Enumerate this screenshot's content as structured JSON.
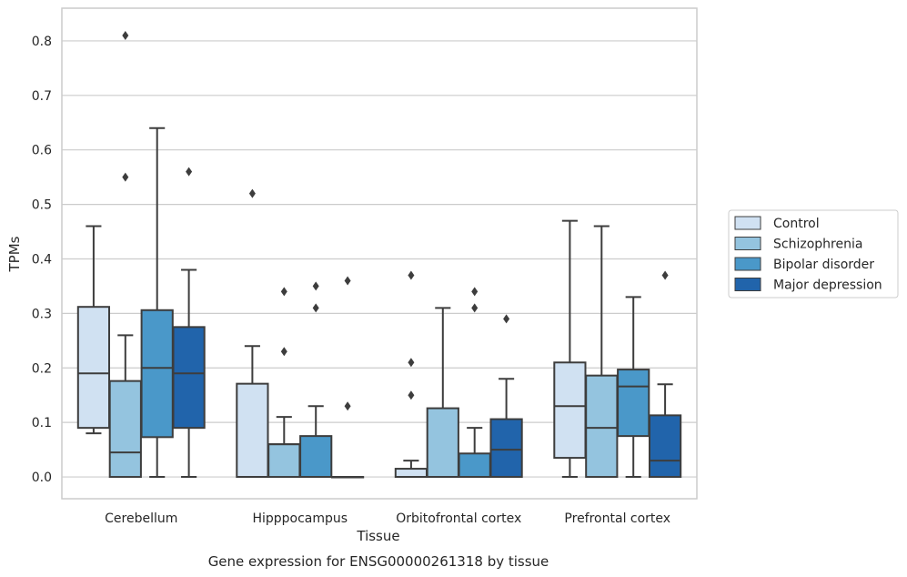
{
  "caption": "Gene expression for ENSG00000261318 by tissue",
  "chart_data": {
    "type": "box",
    "xlabel": "Tissue",
    "ylabel": "TPMs",
    "ylim": [
      -0.04,
      0.86
    ],
    "yticks": [
      0.0,
      0.1,
      0.2,
      0.3,
      0.4,
      0.5,
      0.6,
      0.7,
      0.8
    ],
    "ytick_labels": [
      "0.0",
      "0.1",
      "0.2",
      "0.3",
      "0.4",
      "0.5",
      "0.6",
      "0.7",
      "0.8"
    ],
    "grid": true,
    "legend_position": "right",
    "categories": [
      "Cerebellum",
      "Hipppocampus",
      "Orbitofrontal cortex",
      "Prefrontal cortex"
    ],
    "series": [
      {
        "name": "Control",
        "color": "#d0e1f2",
        "boxes": [
          {
            "min": 0.08,
            "q1": 0.09,
            "median": 0.19,
            "q3": 0.312,
            "max": 0.46,
            "outliers": []
          },
          {
            "min": 0.0,
            "q1": 0.0,
            "median": 0.0,
            "q3": 0.171,
            "max": 0.24,
            "outliers": [
              0.52
            ]
          },
          {
            "min": 0.0,
            "q1": 0.0,
            "median": 0.0,
            "q3": 0.015,
            "max": 0.03,
            "outliers": [
              0.15,
              0.21,
              0.37
            ]
          },
          {
            "min": 0.0,
            "q1": 0.035,
            "median": 0.13,
            "q3": 0.21,
            "max": 0.47,
            "outliers": []
          }
        ]
      },
      {
        "name": "Schizophrenia",
        "color": "#94c4df",
        "boxes": [
          {
            "min": 0.0,
            "q1": 0.0,
            "median": 0.045,
            "q3": 0.176,
            "max": 0.26,
            "outliers": [
              0.55,
              0.81
            ]
          },
          {
            "min": 0.0,
            "q1": 0.0,
            "median": 0.06,
            "q3": 0.06,
            "max": 0.11,
            "outliers": [
              0.23,
              0.34
            ]
          },
          {
            "min": 0.0,
            "q1": 0.0,
            "median": 0.0,
            "q3": 0.126,
            "max": 0.31,
            "outliers": []
          },
          {
            "min": 0.0,
            "q1": 0.0,
            "median": 0.09,
            "q3": 0.186,
            "max": 0.46,
            "outliers": []
          }
        ]
      },
      {
        "name": "Bipolar disorder",
        "color": "#4a98c9",
        "boxes": [
          {
            "min": 0.0,
            "q1": 0.073,
            "median": 0.2,
            "q3": 0.306,
            "max": 0.64,
            "outliers": []
          },
          {
            "min": 0.0,
            "q1": 0.0,
            "median": 0.0,
            "q3": 0.075,
            "max": 0.13,
            "outliers": [
              0.31,
              0.35
            ]
          },
          {
            "min": 0.0,
            "q1": 0.0,
            "median": 0.0,
            "q3": 0.043,
            "max": 0.09,
            "outliers": [
              0.31,
              0.34
            ]
          },
          {
            "min": 0.0,
            "q1": 0.075,
            "median": 0.166,
            "q3": 0.197,
            "max": 0.33,
            "outliers": []
          }
        ]
      },
      {
        "name": "Major depression",
        "color": "#2164ab",
        "boxes": [
          {
            "min": 0.0,
            "q1": 0.09,
            "median": 0.19,
            "q3": 0.275,
            "max": 0.38,
            "outliers": [
              0.56
            ]
          },
          {
            "min": 0.0,
            "q1": 0.0,
            "median": 0.0,
            "q3": 0.0,
            "max": 0.0,
            "outliers": [
              0.13,
              0.36
            ]
          },
          {
            "min": 0.0,
            "q1": 0.0,
            "median": 0.05,
            "q3": 0.106,
            "max": 0.18,
            "outliers": [
              0.29
            ]
          },
          {
            "min": 0.0,
            "q1": 0.0,
            "median": 0.03,
            "q3": 0.113,
            "max": 0.17,
            "outliers": [
              0.37
            ]
          }
        ]
      }
    ]
  }
}
